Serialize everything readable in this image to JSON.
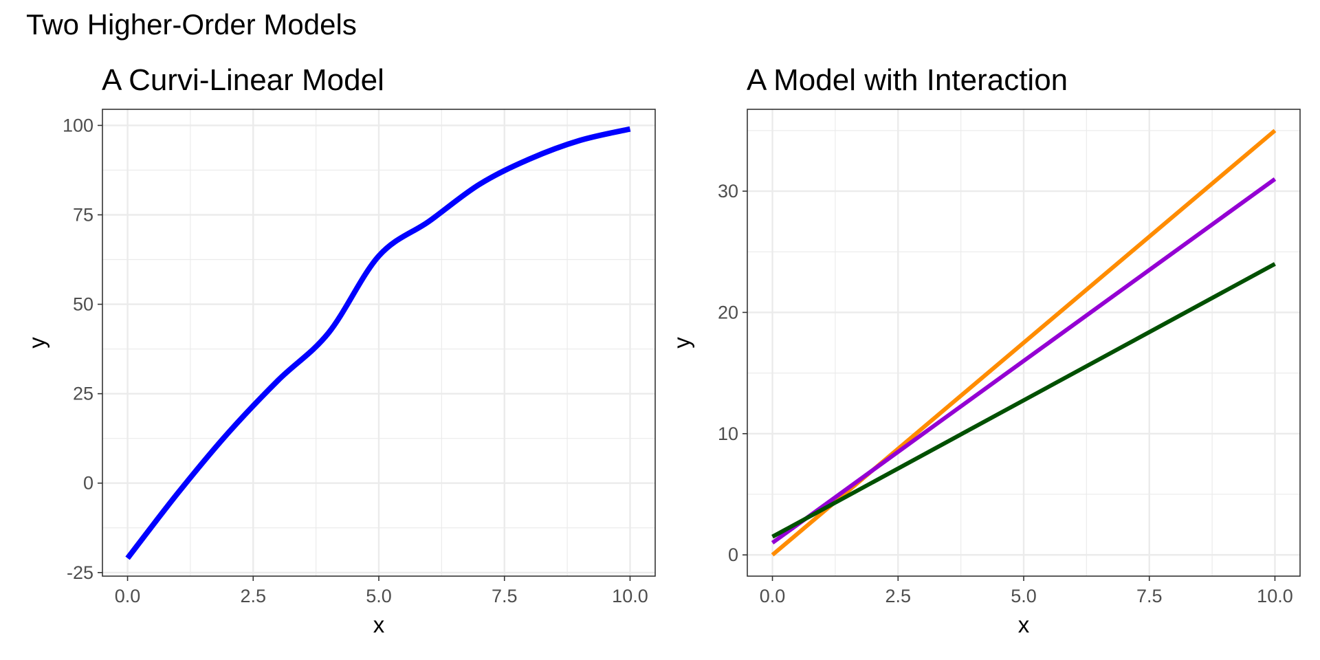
{
  "title": "Two Higher-Order Models",
  "chart_data": [
    {
      "type": "line",
      "title": "A Curvi-Linear Model",
      "xlabel": "x",
      "ylabel": "y",
      "xlim": [
        -0.5,
        10.5
      ],
      "ylim": [
        -26,
        104.5
      ],
      "xticks": [
        0,
        2.5,
        5,
        7.5,
        10
      ],
      "xtick_labels": [
        "0.0",
        "2.5",
        "5.0",
        "7.5",
        "10.0"
      ],
      "yticks": [
        -25,
        0,
        25,
        50,
        75,
        100
      ],
      "ytick_labels": [
        "-25",
        "0",
        "25",
        "50",
        "75",
        "100"
      ],
      "grid": true,
      "series": [
        {
          "color": "#0000ff",
          "x": [
            0,
            1,
            2,
            3,
            4,
            5,
            6,
            7,
            8,
            9,
            10
          ],
          "y": [
            -21,
            -2.8,
            14,
            28.8,
            42,
            63.5,
            73.2,
            83.5,
            90.6,
            95.8,
            99
          ]
        }
      ]
    },
    {
      "type": "line",
      "title": "A Model with Interaction",
      "xlabel": "x",
      "ylabel": "y",
      "xlim": [
        -0.5,
        10.5
      ],
      "ylim": [
        -1.75,
        36.75
      ],
      "xticks": [
        0,
        2.5,
        5,
        7.5,
        10
      ],
      "xtick_labels": [
        "0.0",
        "2.5",
        "5.0",
        "7.5",
        "10.0"
      ],
      "yticks": [
        0,
        10,
        20,
        30
      ],
      "ytick_labels": [
        "0",
        "10",
        "20",
        "30"
      ],
      "grid": true,
      "series": [
        {
          "color": "#ff8c00",
          "x": [
            0,
            10
          ],
          "y": [
            0,
            35
          ]
        },
        {
          "color": "#9400d3",
          "x": [
            0,
            10
          ],
          "y": [
            1,
            31
          ]
        },
        {
          "color": "#005000",
          "x": [
            0,
            10
          ],
          "y": [
            1.5,
            24
          ]
        }
      ]
    }
  ]
}
